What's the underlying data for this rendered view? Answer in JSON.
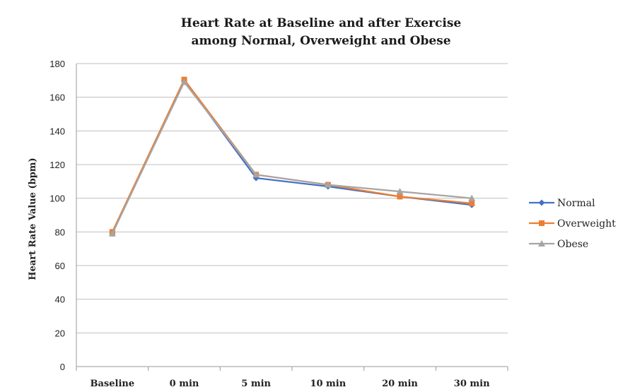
{
  "chart_data": {
    "type": "line",
    "title": [
      "Heart Rate at Baseline and after Exercise",
      "among Normal, Overweight and Obese"
    ],
    "xlabel": "",
    "ylabel": "Heart Rate Value (bpm)",
    "ylim": [
      0,
      180
    ],
    "yticks": [
      0,
      20,
      40,
      60,
      80,
      100,
      120,
      140,
      160,
      180
    ],
    "categories": [
      "Baseline",
      "0 min",
      "5 min",
      "10 min",
      "20 min",
      "30 min"
    ],
    "grid": true,
    "legend_position": "right",
    "series": [
      {
        "name": "Normal",
        "color": "#4472C4",
        "marker": "diamond",
        "values": [
          79,
          170,
          112,
          107,
          101,
          96
        ]
      },
      {
        "name": "Overweight",
        "color": "#ED7D31",
        "marker": "square",
        "values": [
          80,
          170.5,
          114,
          108,
          101,
          97
        ]
      },
      {
        "name": "Obese",
        "color": "#A5A5A5",
        "marker": "triangle",
        "values": [
          79,
          169,
          114,
          108,
          104,
          100
        ]
      }
    ]
  }
}
